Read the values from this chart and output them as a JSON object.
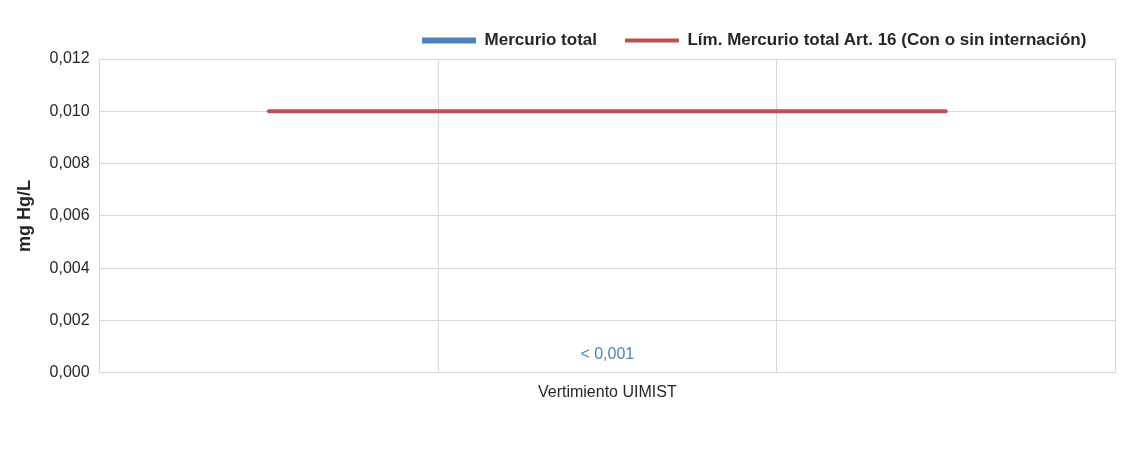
{
  "chart_data": {
    "type": "bar",
    "categories": [
      null,
      "Vertimiento UIMIST",
      null
    ],
    "series": [
      {
        "name": "Mercurio total",
        "color": "#4f81bd",
        "values": [
          null,
          0,
          null
        ],
        "value_labels": [
          null,
          "< 0,001",
          null
        ]
      },
      {
        "name": "Lím. Mercurio total Art. 16 (Con o sin internación)",
        "type": "line",
        "color": "#c0504d",
        "values": [
          0.01,
          0.01,
          0.01
        ]
      }
    ],
    "ylabel": "mg Hg/L",
    "ylim": [
      0,
      0.012
    ],
    "yticks": [
      {
        "value": 0,
        "label": "0,000"
      },
      {
        "value": 0.002,
        "label": "0,002"
      },
      {
        "value": 0.004,
        "label": "0,004"
      },
      {
        "value": 0.006,
        "label": "0,006"
      },
      {
        "value": 0.008,
        "label": "0,008"
      },
      {
        "value": 0.01,
        "label": "0,010"
      },
      {
        "value": 0.012,
        "label": "0,012"
      }
    ],
    "grid": true,
    "legend": "top",
    "marker": "none"
  }
}
